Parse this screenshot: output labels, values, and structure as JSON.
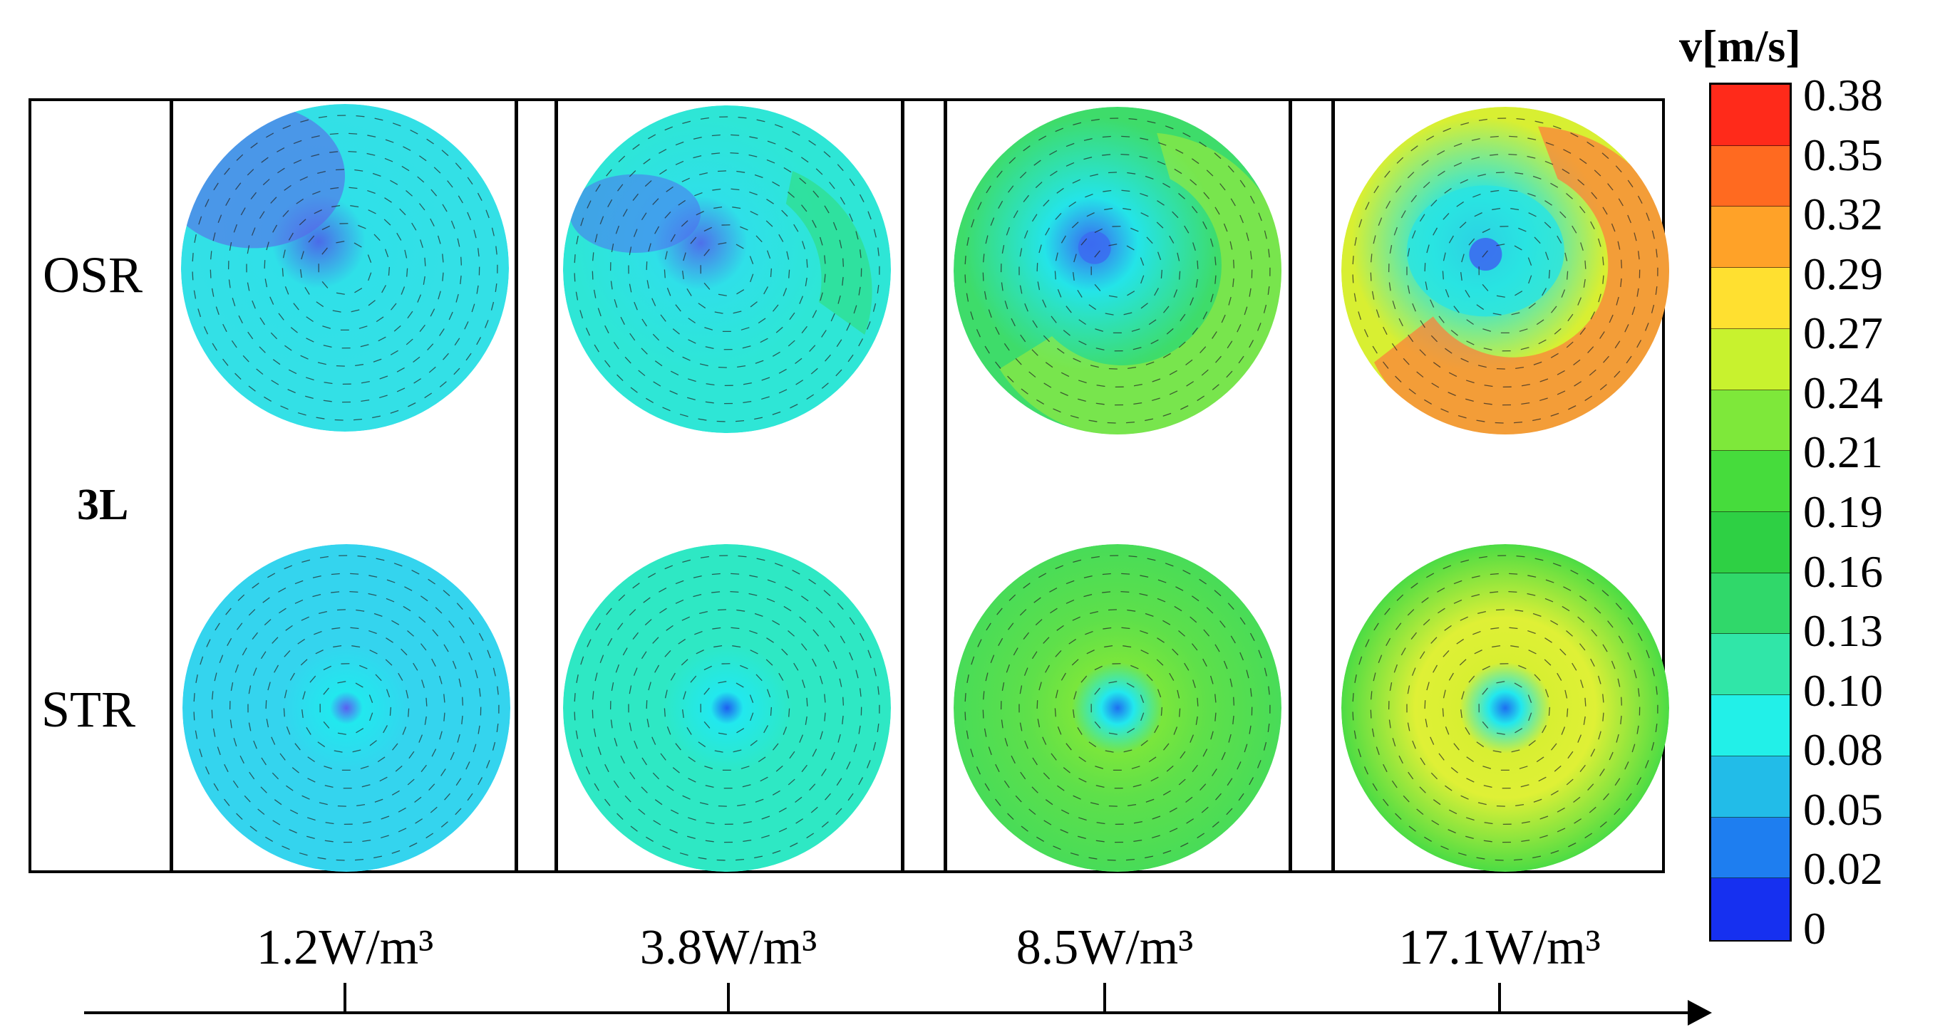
{
  "figure": {
    "row_labels": {
      "top": "OSR",
      "middle": "3L",
      "bottom": "STR"
    },
    "power_labels": [
      "1.2W/m³",
      "3.8W/m³",
      "8.5W/m³",
      "17.1W/m³"
    ],
    "colorbar": {
      "title": "v[m/s]",
      "ticks": [
        "0.38",
        "0.35",
        "0.32",
        "0.29",
        "0.27",
        "0.24",
        "0.21",
        "0.19",
        "0.16",
        "0.13",
        "0.10",
        "0.08",
        "0.05",
        "0.02",
        "0"
      ],
      "colors": [
        "#ff2a1a",
        "#ff6a20",
        "#ffa228",
        "#ffe030",
        "#c8f22e",
        "#7ee83a",
        "#46dc3c",
        "#2ed044",
        "#30d86a",
        "#30e6a8",
        "#22f0e8",
        "#22bce8",
        "#1e7ef0",
        "#1630f0"
      ]
    },
    "panels": [
      {
        "osr_base": "#33e0e6",
        "osr_hot": "#4a6be8",
        "str_base": "#34d4ee",
        "str_center": "#5a5ff0"
      },
      {
        "osr_base": "#2ee6d6",
        "osr_hot": "#4d70ea",
        "str_base": "#2ee8c4",
        "str_center": "#1e5ff0"
      },
      {
        "osr_base": "#3edc6a",
        "osr_hot": "#3a66f0",
        "str_base": "#48dc58",
        "str_center": "#1e70f0"
      },
      {
        "osr_base": "#d8ef32",
        "osr_hot": "#3a66f0",
        "str_base": "#4cdc44",
        "str_center": "#1e6ff0"
      }
    ]
  }
}
